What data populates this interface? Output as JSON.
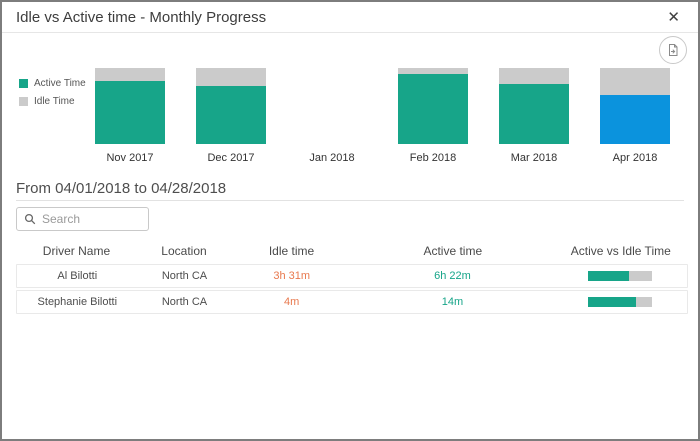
{
  "dialog": {
    "title": "Idle vs Active time - Monthly Progress"
  },
  "icons": {
    "close": "✕"
  },
  "colors": {
    "active": "#17a589",
    "idle": "#cbcbcb",
    "selected_active": "#0b93dd",
    "idle_text": "#e8794e",
    "active_text": "#17a589"
  },
  "chart_data": {
    "type": "bar",
    "subtype": "stacked-percent-column",
    "title": "Idle vs Active time - Monthly Progress",
    "categories": [
      "Nov 2017",
      "Dec 2017",
      "Jan 2018",
      "Feb 2018",
      "Mar 2018",
      "Apr 2018"
    ],
    "series": [
      {
        "name": "Active Time",
        "color": "#17a589",
        "values": [
          83,
          76,
          null,
          92,
          79,
          65
        ]
      },
      {
        "name": "Idle Time",
        "color": "#cbcbcb",
        "values": [
          17,
          24,
          null,
          8,
          21,
          35
        ]
      }
    ],
    "selected_category": "Apr 2018",
    "selected_active_color": "#0b93dd",
    "legend_position": "left",
    "ylim": [
      0,
      100
    ],
    "grid": false,
    "axis_labels_hidden": true
  },
  "period": {
    "label": "From 04/01/2018 to 04/28/2018"
  },
  "search": {
    "placeholder": "Search"
  },
  "table": {
    "columns": [
      "Driver Name",
      "Location",
      "Idle time",
      "Active time",
      "Active vs Idle Time"
    ],
    "rows": [
      {
        "driver": "Al Bilotti",
        "location": "North CA",
        "idle": "3h 31m",
        "active": "6h 22m",
        "active_pct": 64
      },
      {
        "driver": "Stephanie Bilotti",
        "location": "North CA",
        "idle": "4m",
        "active": "14m",
        "active_pct": 75
      }
    ]
  }
}
